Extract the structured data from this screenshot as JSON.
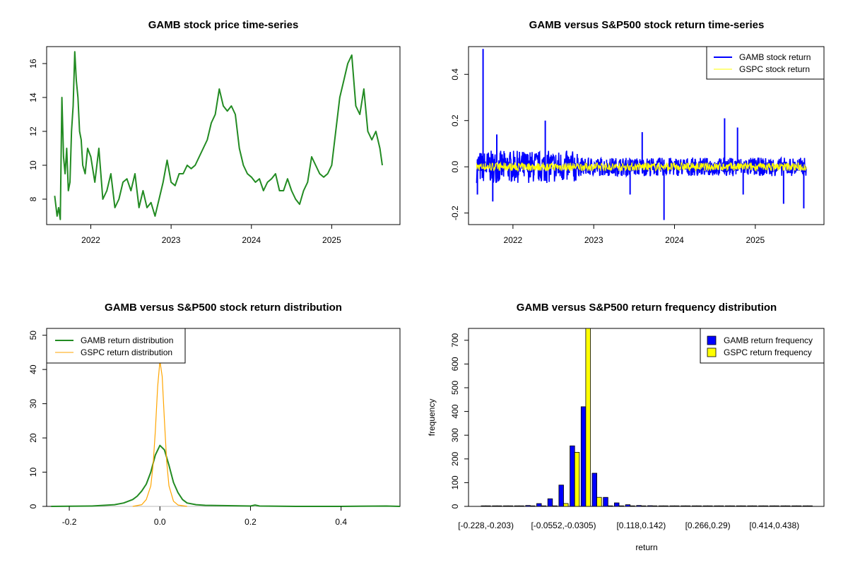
{
  "chart_data": [
    {
      "type": "line",
      "title": "GAMB stock price time-series",
      "xlabel": "",
      "ylabel": "",
      "x_ticks": [
        "2022",
        "2023",
        "2024",
        "2025"
      ],
      "y_ticks": [
        "8",
        "10",
        "12",
        "14",
        "16"
      ],
      "xlim": [
        2021.45,
        2025.85
      ],
      "ylim": [
        6.5,
        17.0
      ],
      "color": "#228B22",
      "series": [
        {
          "x": [
            2021.55,
            2021.58,
            2021.6,
            2021.62,
            2021.64,
            2021.66,
            2021.68,
            2021.7,
            2021.72,
            2021.74,
            2021.76,
            2021.78,
            2021.8,
            2021.82,
            2021.84,
            2021.86,
            2021.88,
            2021.9,
            2021.93,
            2021.96,
            2022.0,
            2022.05,
            2022.1,
            2022.15,
            2022.2,
            2022.25,
            2022.3,
            2022.35,
            2022.4,
            2022.45,
            2022.5,
            2022.55,
            2022.6,
            2022.65,
            2022.7,
            2022.75,
            2022.8,
            2022.85,
            2022.9,
            2022.95,
            2023.0,
            2023.05,
            2023.1,
            2023.15,
            2023.2,
            2023.25,
            2023.3,
            2023.35,
            2023.4,
            2023.45,
            2023.5,
            2023.55,
            2023.6,
            2023.65,
            2023.7,
            2023.75,
            2023.8,
            2023.85,
            2023.9,
            2023.95,
            2024.0,
            2024.05,
            2024.1,
            2024.15,
            2024.2,
            2024.25,
            2024.3,
            2024.35,
            2024.4,
            2024.45,
            2024.5,
            2024.55,
            2024.6,
            2024.65,
            2024.7,
            2024.75,
            2024.8,
            2024.85,
            2024.9,
            2024.95,
            2025.0,
            2025.05,
            2025.1,
            2025.15,
            2025.2,
            2025.25,
            2025.3,
            2025.35,
            2025.4,
            2025.45,
            2025.5,
            2025.55,
            2025.6,
            2025.63
          ],
          "y": [
            8.2,
            7.0,
            7.5,
            6.8,
            14.0,
            10.5,
            9.5,
            11.0,
            8.5,
            9.0,
            12.0,
            13.5,
            16.7,
            15.0,
            14.0,
            12.0,
            11.5,
            10.0,
            9.5,
            11.0,
            10.5,
            9.0,
            11.0,
            8.0,
            8.5,
            9.5,
            7.5,
            8.0,
            9.0,
            9.2,
            8.5,
            9.5,
            7.5,
            8.5,
            7.5,
            7.8,
            7.0,
            8.0,
            9.0,
            10.3,
            9.0,
            8.8,
            9.5,
            9.5,
            10.0,
            9.8,
            10.0,
            10.5,
            11.0,
            11.5,
            12.5,
            13.0,
            14.5,
            13.5,
            13.2,
            13.5,
            13.0,
            11.0,
            10.0,
            9.5,
            9.3,
            9.0,
            9.2,
            8.5,
            9.0,
            9.2,
            9.5,
            8.5,
            8.5,
            9.2,
            8.5,
            8.0,
            7.7,
            8.5,
            9.0,
            10.5,
            10.0,
            9.5,
            9.3,
            9.5,
            10.0,
            12.0,
            14.0,
            15.0,
            16.0,
            16.5,
            13.5,
            13.0,
            14.5,
            12.0,
            11.5,
            12.0,
            11.0,
            10.0
          ]
        }
      ]
    },
    {
      "type": "line",
      "title": "GAMB versus S&P500 stock return time-series",
      "xlabel": "",
      "ylabel": "",
      "x_ticks": [
        "2022",
        "2023",
        "2024",
        "2025"
      ],
      "y_ticks": [
        "-0.2",
        "0.0",
        "0.2",
        "0.4"
      ],
      "xlim": [
        2021.45,
        2025.85
      ],
      "ylim": [
        -0.25,
        0.52
      ],
      "legend_position": "top-right",
      "series": [
        {
          "name": "GAMB stock return",
          "color": "#0000FF"
        },
        {
          "name": "GSPC stock return",
          "color": "#FFFF00"
        }
      ],
      "spikes": [
        {
          "x": 2021.63,
          "y": 0.51
        },
        {
          "x": 2021.56,
          "y": -0.12
        },
        {
          "x": 2021.8,
          "y": 0.14
        },
        {
          "x": 2021.75,
          "y": -0.15
        },
        {
          "x": 2022.4,
          "y": 0.2
        },
        {
          "x": 2023.45,
          "y": -0.12
        },
        {
          "x": 2023.6,
          "y": 0.15
        },
        {
          "x": 2023.87,
          "y": -0.23
        },
        {
          "x": 2024.62,
          "y": 0.21
        },
        {
          "x": 2024.78,
          "y": 0.17
        },
        {
          "x": 2024.85,
          "y": -0.12
        },
        {
          "x": 2025.35,
          "y": -0.16
        },
        {
          "x": 2025.6,
          "y": -0.18
        }
      ]
    },
    {
      "type": "line",
      "title": "GAMB versus S&P500 stock return distribution",
      "xlabel": "",
      "ylabel": "",
      "x_ticks": [
        "-0.2",
        "0.0",
        "0.2",
        "0.4"
      ],
      "y_ticks": [
        "0",
        "10",
        "20",
        "30",
        "40",
        "50"
      ],
      "xlim": [
        -0.25,
        0.53
      ],
      "ylim": [
        0,
        52
      ],
      "legend_position": "top-left",
      "series": [
        {
          "name": "GAMB return distribution",
          "color": "#228B22",
          "x": [
            -0.24,
            -0.15,
            -0.1,
            -0.08,
            -0.06,
            -0.05,
            -0.04,
            -0.03,
            -0.02,
            -0.01,
            0.0,
            0.01,
            0.02,
            0.03,
            0.04,
            0.05,
            0.06,
            0.08,
            0.1,
            0.15,
            0.2,
            0.21,
            0.22,
            0.3,
            0.4,
            0.5,
            0.53
          ],
          "y": [
            0.0,
            0.1,
            0.5,
            1.0,
            2.0,
            3.0,
            4.5,
            6.5,
            10.0,
            15.0,
            17.8,
            16.5,
            12.0,
            7.0,
            4.0,
            2.0,
            1.0,
            0.5,
            0.3,
            0.2,
            0.1,
            0.4,
            0.1,
            0.0,
            0.0,
            0.1,
            0.0
          ]
        },
        {
          "name": "GSPC return distribution",
          "color": "#FFA500",
          "x": [
            -0.06,
            -0.04,
            -0.03,
            -0.02,
            -0.015,
            -0.01,
            -0.005,
            0.0,
            0.005,
            0.01,
            0.015,
            0.02,
            0.03,
            0.04,
            0.06
          ],
          "y": [
            0.0,
            0.5,
            2.0,
            6.0,
            12.0,
            22.0,
            35.0,
            42.5,
            38.0,
            25.0,
            13.0,
            6.0,
            1.5,
            0.4,
            0.0
          ]
        }
      ]
    },
    {
      "type": "bar",
      "title": "GAMB versus S&P500 return frequency distribution",
      "xlabel": "return",
      "ylabel": "frequency",
      "x_tick_labels": [
        "[-0.228,-0.203)",
        "[-0.0552,-0.0305)",
        "[0.118,0.142)",
        "[0.266,0.29)",
        "[0.414,0.438)"
      ],
      "y_ticks": [
        "0",
        "100",
        "200",
        "300",
        "400",
        "500",
        "600",
        "700"
      ],
      "ylim": [
        0,
        750
      ],
      "legend_position": "top-right",
      "series": [
        {
          "name": "GAMB return frequency",
          "color": "#0000FF",
          "values": [
            1,
            1,
            1,
            2,
            4,
            12,
            32,
            90,
            255,
            420,
            140,
            38,
            15,
            7,
            4,
            3,
            2,
            2,
            2,
            1,
            1,
            1,
            1,
            1,
            1,
            1,
            1,
            1,
            1,
            1
          ]
        },
        {
          "name": "GSPC return frequency",
          "color": "#FFFF00",
          "values": [
            0,
            0,
            0,
            0,
            0,
            0,
            0,
            12,
            228,
            750,
            38,
            0,
            0,
            0,
            0,
            0,
            0,
            0,
            0,
            0,
            0,
            0,
            0,
            0,
            0,
            0,
            0,
            0,
            0,
            0
          ]
        }
      ]
    }
  ]
}
